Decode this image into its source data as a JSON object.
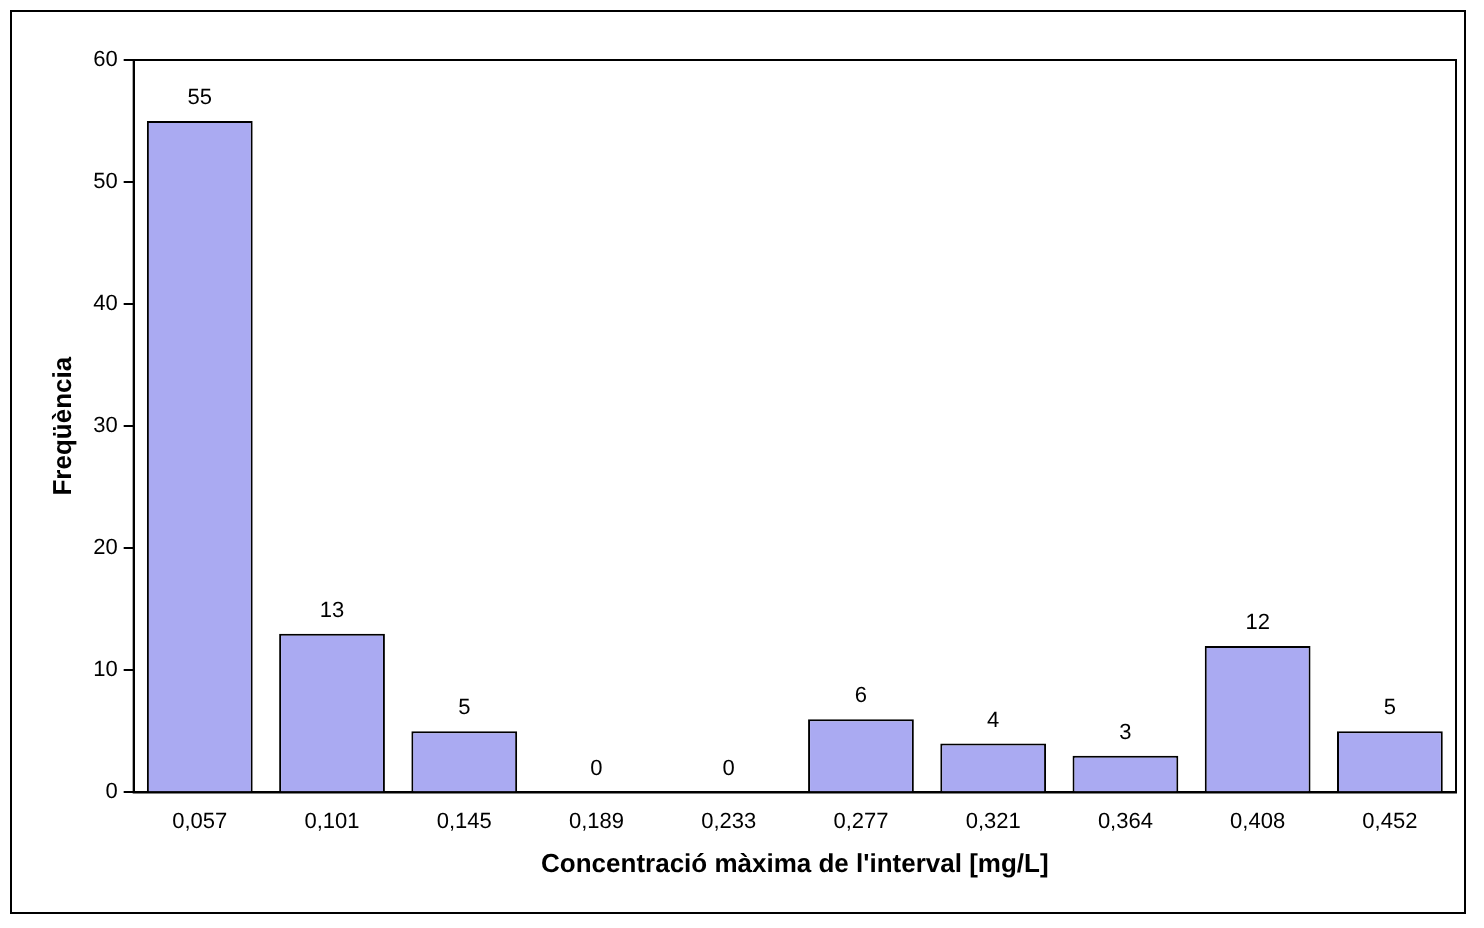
{
  "chart_data": {
    "type": "bar",
    "xlabel": "Concentració màxima de l'interval [mg/L]",
    "ylabel": "Freqüència",
    "categories": [
      "0,057",
      "0,101",
      "0,145",
      "0,189",
      "0,233",
      "0,277",
      "0,321",
      "0,364",
      "0,408",
      "0,452"
    ],
    "values": [
      55,
      13,
      5,
      0,
      0,
      6,
      4,
      3,
      12,
      5
    ],
    "color": "#aaaaf2",
    "ylim": [
      0,
      60
    ],
    "yticks": [
      0,
      10,
      20,
      30,
      40,
      50,
      60
    ],
    "grid": false,
    "legend": false,
    "data_labels": true
  }
}
